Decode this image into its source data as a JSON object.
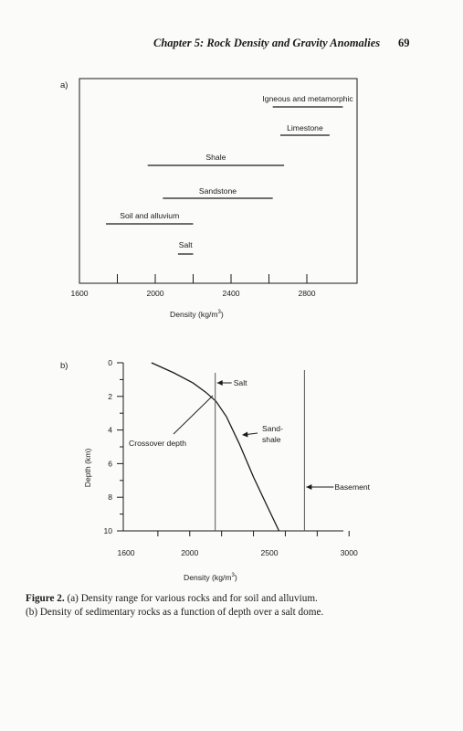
{
  "header": {
    "running_title": "Chapter 5:  Rock Density and Gravity Anomalies",
    "page_number": "69"
  },
  "figure_a": {
    "panel_label": "a)",
    "chart_data": {
      "type": "range",
      "xlabel": "Density (kg/m",
      "xlabel_sup": "3",
      "xlabel_end": ")",
      "xlim": [
        1600,
        3100
      ],
      "xticks": [
        "1600",
        "2000",
        "2400",
        "2800"
      ],
      "ranges": [
        {
          "label": "Igneous and metamorphic",
          "min": 2620,
          "max": 2990
        },
        {
          "label": "Limestone",
          "min": 2660,
          "max": 2920
        },
        {
          "label": "Shale",
          "min": 1960,
          "max": 2680
        },
        {
          "label": "Sandstone",
          "min": 2040,
          "max": 2620
        },
        {
          "label": "Soil and alluvium",
          "min": 1740,
          "max": 2200
        },
        {
          "label": "Salt",
          "min": 2120,
          "max": 2200
        }
      ]
    }
  },
  "figure_b": {
    "panel_label": "b)",
    "chart_data": {
      "type": "line",
      "xlabel": "Density (kg/m",
      "xlabel_sup": "3",
      "xlabel_end": ")",
      "ylabel": "Depth (km)",
      "xlim": [
        1430,
        3100
      ],
      "ylim": [
        0,
        10
      ],
      "xticks": [
        "1600",
        "2000",
        "2500",
        "3000"
      ],
      "yticks": [
        "0",
        "2",
        "4",
        "6",
        "8",
        "10"
      ],
      "series": [
        {
          "name": "Sand-shale",
          "x": [
            1760,
            1900,
            2020,
            2100,
            2165,
            2230,
            2310,
            2400,
            2480,
            2560
          ],
          "y": [
            0,
            0.6,
            1.2,
            1.75,
            2.3,
            3.2,
            4.8,
            6.8,
            8.4,
            10
          ]
        }
      ],
      "vertical_lines": [
        {
          "name": "Salt",
          "x": 2160
        },
        {
          "name": "Basement",
          "x": 2720
        }
      ],
      "annotations": {
        "salt": "Salt",
        "sand_shale_1": "Sand-",
        "sand_shale_2": "shale",
        "basement": "Basement",
        "crossover": "Crossover depth"
      }
    }
  },
  "caption": {
    "label": "Figure 2.",
    "text_line1": " (a) Density range for various rocks and for soil and alluvium.",
    "text_line2": "(b) Density of sedimentary rocks as a function of depth over a salt dome."
  }
}
